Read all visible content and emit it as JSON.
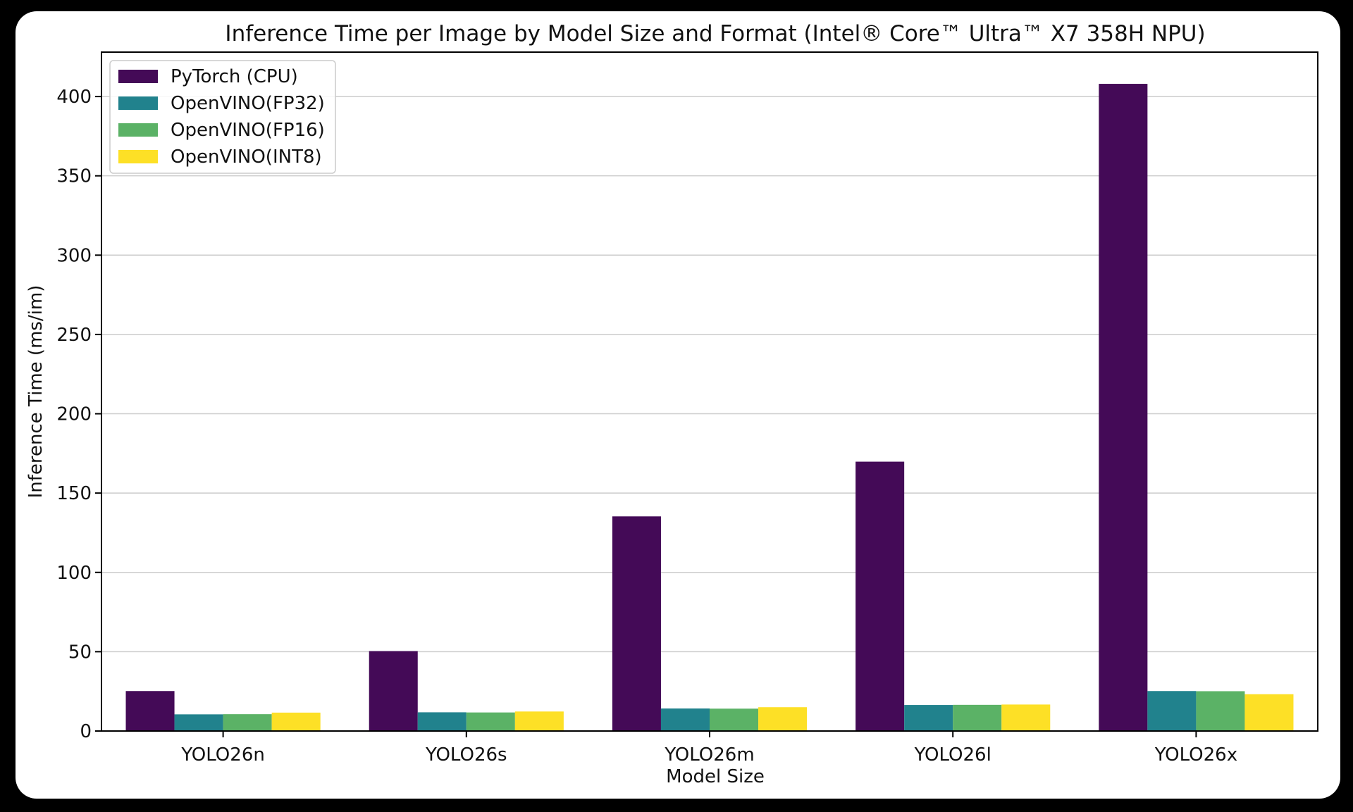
{
  "chart_data": {
    "type": "bar",
    "title": "Inference Time per Image by Model Size and Format (Intel® Core™ Ultra™ X7 358H NPU)",
    "xlabel": "Model Size",
    "ylabel": "Inference Time (ms/im)",
    "categories": [
      "YOLO26n",
      "YOLO26s",
      "YOLO26m",
      "YOLO26l",
      "YOLO26x"
    ],
    "series": [
      {
        "name": "PyTorch (CPU)",
        "color": "#440a57",
        "values": [
          25.2,
          50.4,
          135.3,
          169.8,
          408.0
        ]
      },
      {
        "name": "OpenVINO(FP32)",
        "color": "#21828d",
        "values": [
          10.5,
          11.8,
          14.2,
          16.4,
          25.2
        ]
      },
      {
        "name": "OpenVINO(FP16)",
        "color": "#5bb266",
        "values": [
          10.6,
          11.7,
          14.1,
          16.5,
          25.1
        ]
      },
      {
        "name": "OpenVINO(INT8)",
        "color": "#fde026",
        "values": [
          11.6,
          12.3,
          15.0,
          16.7,
          23.2
        ]
      }
    ],
    "ylim": [
      0,
      428
    ],
    "yticks": [
      0,
      50,
      100,
      150,
      200,
      250,
      300,
      350,
      400
    ],
    "grid": "horizontal",
    "legend_position": "top-left"
  }
}
